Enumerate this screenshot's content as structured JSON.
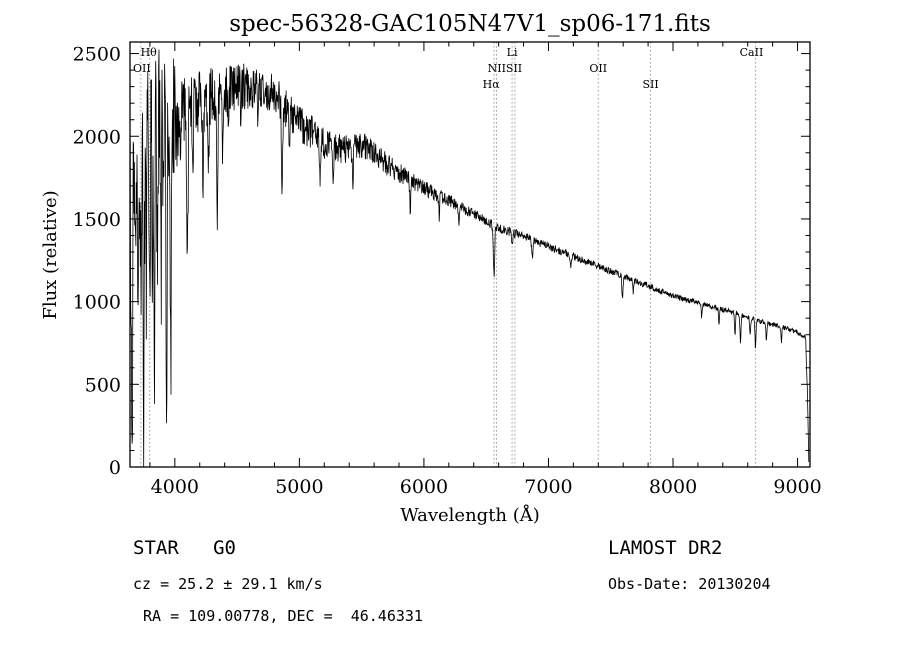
{
  "chart_data": {
    "type": "line",
    "title": "spec-56328-GAC105N47V1_sp06-171.fits",
    "xlabel": "Wavelength (Å)",
    "ylabel": "Flux (relative)",
    "xlim": [
      3640,
      9100
    ],
    "ylim": [
      0,
      2570
    ],
    "xticks": [
      4000,
      5000,
      6000,
      7000,
      8000,
      9000
    ],
    "yticks": [
      0,
      500,
      1000,
      1500,
      2000,
      2500
    ],
    "x_minor_step": 200,
    "y_minor_step": 100,
    "grid": false,
    "legend": "none",
    "line_color": "#000000",
    "marker_line_color": "#9a9a9a",
    "sample_step": 3,
    "seed": 12345,
    "markers": [
      {
        "label": "Hθ",
        "wavelengths": [
          3798
        ],
        "label_wavelength": 3790,
        "row": 0
      },
      {
        "label": "OII",
        "wavelengths": [
          3727
        ],
        "label_wavelength": 3735,
        "row": 1
      },
      {
        "label": "Li",
        "wavelengths": [
          6708
        ],
        "label_wavelength": 6708,
        "row": 0
      },
      {
        "label": "NIISII",
        "wavelengths": [
          6583,
          6731
        ],
        "label_wavelength": 6650,
        "row": 1
      },
      {
        "label": "Hα",
        "wavelengths": [
          6563
        ],
        "label_wavelength": 6540,
        "row": 2
      },
      {
        "label": "OII",
        "wavelengths": [
          7400
        ],
        "label_wavelength": 7400,
        "row": 1
      },
      {
        "label": "SII",
        "wavelengths": [
          7820
        ],
        "label_wavelength": 7820,
        "row": 2
      },
      {
        "label": "CaII",
        "wavelengths": [
          8662
        ],
        "label_wavelength": 8630,
        "row": 0
      }
    ],
    "continuum_points": [
      [
        3640,
        1550
      ],
      [
        3680,
        1750
      ],
      [
        3720,
        1950
      ],
      [
        3760,
        2020
      ],
      [
        3800,
        2060
      ],
      [
        3850,
        2110
      ],
      [
        3900,
        2150
      ],
      [
        3950,
        2150
      ],
      [
        4000,
        2110
      ],
      [
        4100,
        2160
      ],
      [
        4200,
        2210
      ],
      [
        4300,
        2250
      ],
      [
        4400,
        2280
      ],
      [
        4500,
        2300
      ],
      [
        4600,
        2300
      ],
      [
        4700,
        2280
      ],
      [
        4800,
        2250
      ],
      [
        4900,
        2160
      ],
      [
        5000,
        2080
      ],
      [
        5100,
        2020
      ],
      [
        5200,
        1960
      ],
      [
        5300,
        1930
      ],
      [
        5400,
        1920
      ],
      [
        5500,
        1950
      ],
      [
        5600,
        1900
      ],
      [
        5700,
        1830
      ],
      [
        5800,
        1780
      ],
      [
        5900,
        1730
      ],
      [
        6000,
        1690
      ],
      [
        6100,
        1650
      ],
      [
        6200,
        1610
      ],
      [
        6300,
        1570
      ],
      [
        6400,
        1530
      ],
      [
        6500,
        1485
      ],
      [
        6600,
        1445
      ],
      [
        6700,
        1420
      ],
      [
        6800,
        1395
      ],
      [
        6900,
        1365
      ],
      [
        7000,
        1335
      ],
      [
        7100,
        1305
      ],
      [
        7200,
        1275
      ],
      [
        7300,
        1245
      ],
      [
        7400,
        1215
      ],
      [
        7500,
        1185
      ],
      [
        7600,
        1155
      ],
      [
        7700,
        1125
      ],
      [
        7800,
        1095
      ],
      [
        7900,
        1065
      ],
      [
        8000,
        1035
      ],
      [
        8100,
        1012
      ],
      [
        8200,
        992
      ],
      [
        8300,
        972
      ],
      [
        8400,
        952
      ],
      [
        8500,
        932
      ],
      [
        8600,
        905
      ],
      [
        8700,
        882
      ],
      [
        8800,
        862
      ],
      [
        8900,
        842
      ],
      [
        9000,
        812
      ],
      [
        9040,
        795
      ],
      [
        9065,
        780
      ],
      [
        9080,
        430
      ],
      [
        9090,
        40
      ]
    ],
    "noise_amplitude_points": [
      [
        3640,
        560
      ],
      [
        3850,
        500
      ],
      [
        3980,
        380
      ],
      [
        4050,
        230
      ],
      [
        4200,
        190
      ],
      [
        4400,
        155
      ],
      [
        4700,
        125
      ],
      [
        5000,
        110
      ],
      [
        5300,
        95
      ],
      [
        5600,
        75
      ],
      [
        5900,
        52
      ],
      [
        6200,
        38
      ],
      [
        6500,
        30
      ],
      [
        6800,
        26
      ],
      [
        7200,
        22
      ],
      [
        7700,
        19
      ],
      [
        8300,
        16
      ],
      [
        8800,
        15
      ],
      [
        9090,
        12
      ]
    ],
    "absorption_features": [
      [
        3655,
        1400,
        6
      ],
      [
        3680,
        800,
        4
      ],
      [
        3705,
        1200,
        5
      ],
      [
        3727,
        700,
        4
      ],
      [
        3750,
        1500,
        5
      ],
      [
        3770,
        800,
        4
      ],
      [
        3798,
        1100,
        4
      ],
      [
        3820,
        600,
        4
      ],
      [
        3835,
        1400,
        5
      ],
      [
        3860,
        700,
        4
      ],
      [
        3889,
        1100,
        4
      ],
      [
        3910,
        600,
        4
      ],
      [
        3933,
        1800,
        5
      ],
      [
        3968,
        1600,
        5
      ],
      [
        4045,
        450,
        4
      ],
      [
        4101,
        850,
        5
      ],
      [
        4144,
        400,
        4
      ],
      [
        4226,
        450,
        4
      ],
      [
        4271,
        350,
        4
      ],
      [
        4340,
        750,
        5
      ],
      [
        4383,
        500,
        4
      ],
      [
        4430,
        300,
        4
      ],
      [
        4530,
        250,
        4
      ],
      [
        4668,
        250,
        4
      ],
      [
        4861,
        520,
        5
      ],
      [
        4920,
        200,
        4
      ],
      [
        5167,
        280,
        5
      ],
      [
        5270,
        230,
        4
      ],
      [
        5430,
        180,
        4
      ],
      [
        5890,
        180,
        4
      ],
      [
        6122,
        120,
        4
      ],
      [
        6280,
        100,
        4
      ],
      [
        6563,
        320,
        5
      ],
      [
        6710,
        80,
        4
      ],
      [
        6870,
        110,
        5
      ],
      [
        7180,
        80,
        5
      ],
      [
        7594,
        130,
        5
      ],
      [
        7680,
        70,
        4
      ],
      [
        8230,
        80,
        4
      ],
      [
        8370,
        90,
        4
      ],
      [
        8498,
        130,
        4
      ],
      [
        8542,
        175,
        4
      ],
      [
        8620,
        100,
        4
      ],
      [
        8662,
        165,
        4
      ],
      [
        8750,
        110,
        4
      ],
      [
        8870,
        90,
        4
      ]
    ]
  },
  "annotations": {
    "object_class": "STAR   G0",
    "cz": "cz = 25.2 ± 29.1 km/s",
    "radec": "RA = 109.00778, DEC =  46.46331",
    "survey": "LAMOST DR2",
    "obs_date": "Obs-Date: 20130204"
  }
}
